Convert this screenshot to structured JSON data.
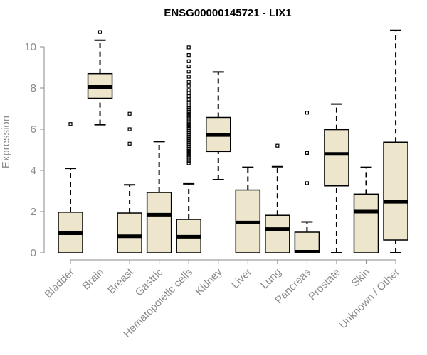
{
  "chart_data": {
    "type": "boxplot",
    "title": "ENSG00000145721 - LIX1",
    "xlabel": "",
    "ylabel": "Expression",
    "ylim": [
      0,
      11
    ],
    "yticks": [
      0,
      2,
      4,
      6,
      8,
      10
    ],
    "colors": {
      "box_fill": "#ede6cd",
      "stroke": "#000000",
      "axis": "#8a8a8a"
    },
    "categories": [
      "Bladder",
      "Brain",
      "Breast",
      "Gastric",
      "Hematopoietic cells",
      "Kidney",
      "Liver",
      "Lung",
      "Pancreas",
      "Prostate",
      "Skin",
      "Unknown / Other"
    ],
    "boxes": [
      {
        "category": "Bladder",
        "whisker_low": 0,
        "q1": 0,
        "median": 0.95,
        "q3": 1.97,
        "whisker_high": 4.1,
        "outliers": [
          6.25
        ]
      },
      {
        "category": "Brain",
        "whisker_low": 6.22,
        "q1": 7.5,
        "median": 8.05,
        "q3": 8.7,
        "whisker_high": 10.32,
        "outliers": [
          10.72
        ]
      },
      {
        "category": "Breast",
        "whisker_low": 0,
        "q1": 0,
        "median": 0.8,
        "q3": 1.93,
        "whisker_high": 3.3,
        "outliers": [
          5.3,
          6.0,
          6.75
        ]
      },
      {
        "category": "Gastric",
        "whisker_low": 0,
        "q1": 0,
        "median": 1.85,
        "q3": 2.93,
        "whisker_high": 5.4,
        "outliers": []
      },
      {
        "category": "Hematopoietic cells",
        "whisker_low": 0,
        "q1": 0,
        "median": 0.78,
        "q3": 1.62,
        "whisker_high": 3.35,
        "outliers": [
          4.35,
          4.45,
          4.55,
          4.65,
          4.75,
          4.85,
          4.95,
          5.05,
          5.15,
          5.25,
          5.35,
          5.45,
          5.55,
          5.65,
          5.75,
          5.85,
          5.95,
          6.05,
          6.15,
          6.25,
          6.35,
          6.45,
          6.55,
          6.65,
          6.75,
          6.85,
          6.95,
          7.05,
          7.15,
          7.3,
          7.45,
          7.6,
          7.75,
          7.9,
          8.1,
          8.3,
          8.55,
          8.8,
          9.05,
          9.3,
          9.6,
          9.97
        ]
      },
      {
        "category": "Kidney",
        "whisker_low": 3.55,
        "q1": 4.92,
        "median": 5.72,
        "q3": 6.57,
        "whisker_high": 8.78,
        "outliers": []
      },
      {
        "category": "Liver",
        "whisker_low": 0,
        "q1": 0,
        "median": 1.47,
        "q3": 3.05,
        "whisker_high": 4.15,
        "outliers": []
      },
      {
        "category": "Lung",
        "whisker_low": 0,
        "q1": 0,
        "median": 1.15,
        "q3": 1.82,
        "whisker_high": 4.18,
        "outliers": [
          5.2
        ]
      },
      {
        "category": "Pancreas",
        "whisker_low": 0,
        "q1": 0,
        "median": 0.05,
        "q3": 1.0,
        "whisker_high": 1.5,
        "outliers": [
          3.38,
          4.85,
          6.8
        ]
      },
      {
        "category": "Prostate",
        "whisker_low": 0,
        "q1": 3.25,
        "median": 4.8,
        "q3": 5.98,
        "whisker_high": 7.22,
        "outliers": []
      },
      {
        "category": "Skin",
        "whisker_low": 0,
        "q1": 0,
        "median": 2.0,
        "q3": 2.85,
        "whisker_high": 4.15,
        "outliers": []
      },
      {
        "category": "Unknown / Other",
        "whisker_low": 0,
        "q1": 0.62,
        "median": 2.48,
        "q3": 5.37,
        "whisker_high": 10.8,
        "outliers": []
      }
    ]
  }
}
